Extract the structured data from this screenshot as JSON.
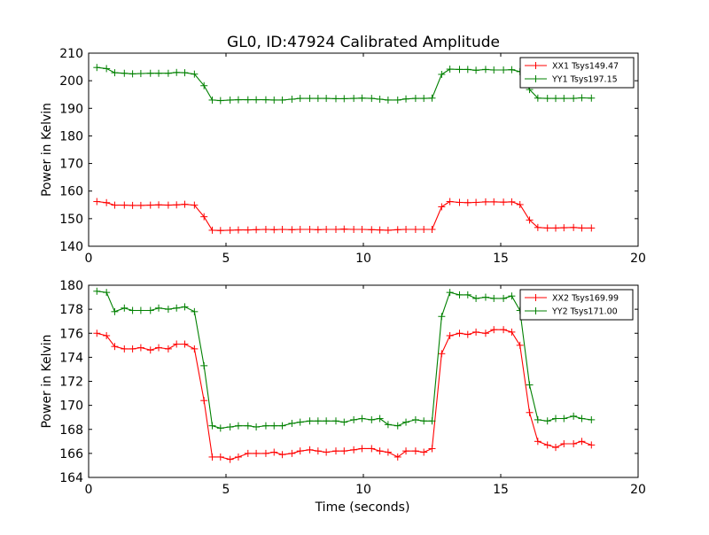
{
  "chart_data": [
    {
      "type": "line",
      "title": "GL0, ID:47924 Calibrated Amplitude",
      "xlabel": "",
      "ylabel": "Power in Kelvin",
      "xlim": [
        0,
        20
      ],
      "ylim": [
        140,
        210
      ],
      "xticks": [
        "0",
        "5",
        "10",
        "15",
        "20"
      ],
      "yticks": [
        "140",
        "150",
        "160",
        "170",
        "180",
        "190",
        "200",
        "210"
      ],
      "legend_position": "top-right",
      "x": [
        0.3,
        0.65,
        0.95,
        1.3,
        1.6,
        1.9,
        2.25,
        2.55,
        2.9,
        3.2,
        3.5,
        3.85,
        4.2,
        4.5,
        4.8,
        5.15,
        5.45,
        5.8,
        6.1,
        6.45,
        6.75,
        7.05,
        7.4,
        7.7,
        8.05,
        8.35,
        8.65,
        9.0,
        9.3,
        9.65,
        9.95,
        10.3,
        10.6,
        10.9,
        11.25,
        11.55,
        11.9,
        12.2,
        12.5,
        12.85,
        13.15,
        13.5,
        13.8,
        14.1,
        14.45,
        14.75,
        15.1,
        15.4,
        15.7,
        16.05,
        16.35,
        16.7,
        17.0,
        17.3,
        17.65,
        17.95,
        18.3
      ],
      "series": [
        {
          "name": "XX1 Tsys149.47",
          "color": "#ff0000",
          "values": [
            156.2,
            155.8,
            154.9,
            154.9,
            154.8,
            154.8,
            154.9,
            155.0,
            154.9,
            155.0,
            155.2,
            154.9,
            150.7,
            145.8,
            145.7,
            145.8,
            145.9,
            145.9,
            146.0,
            146.1,
            146.0,
            146.1,
            146.0,
            146.1,
            146.1,
            146.0,
            146.1,
            146.1,
            146.2,
            146.1,
            146.1,
            146.0,
            145.9,
            145.8,
            146.0,
            146.1,
            146.1,
            146.1,
            146.1,
            154.3,
            156.2,
            155.9,
            155.8,
            155.9,
            156.1,
            156.1,
            156.0,
            156.1,
            155.1,
            149.5,
            146.8,
            146.6,
            146.6,
            146.7,
            146.8,
            146.6,
            146.6
          ]
        },
        {
          "name": "YY1 Tsys197.15",
          "color": "#008000",
          "values": [
            204.8,
            204.4,
            202.9,
            202.7,
            202.5,
            202.6,
            202.7,
            202.7,
            202.7,
            203.0,
            202.9,
            202.4,
            198.2,
            193.0,
            192.8,
            193.0,
            193.1,
            193.1,
            193.1,
            193.1,
            193.0,
            193.0,
            193.3,
            193.6,
            193.6,
            193.6,
            193.6,
            193.5,
            193.5,
            193.6,
            193.7,
            193.6,
            193.3,
            193.0,
            193.0,
            193.4,
            193.6,
            193.6,
            193.7,
            202.3,
            204.2,
            204.1,
            204.1,
            203.8,
            204.1,
            203.9,
            203.9,
            204.0,
            203.3,
            196.8,
            193.7,
            193.6,
            193.6,
            193.6,
            193.6,
            193.8,
            193.7
          ]
        }
      ]
    },
    {
      "type": "line",
      "title": "",
      "xlabel": "Time (seconds)",
      "ylabel": "Power in Kelvin",
      "xlim": [
        0,
        20
      ],
      "ylim": [
        164,
        180
      ],
      "xticks": [
        "0",
        "5",
        "10",
        "15",
        "20"
      ],
      "yticks": [
        "164",
        "166",
        "168",
        "170",
        "172",
        "174",
        "176",
        "178",
        "180"
      ],
      "legend_position": "top-right",
      "x": [
        0.3,
        0.65,
        0.95,
        1.3,
        1.6,
        1.9,
        2.25,
        2.55,
        2.9,
        3.2,
        3.5,
        3.85,
        4.2,
        4.5,
        4.8,
        5.15,
        5.45,
        5.8,
        6.1,
        6.45,
        6.75,
        7.05,
        7.4,
        7.7,
        8.05,
        8.35,
        8.65,
        9.0,
        9.3,
        9.65,
        9.95,
        10.3,
        10.6,
        10.9,
        11.25,
        11.55,
        11.9,
        12.2,
        12.5,
        12.85,
        13.15,
        13.5,
        13.8,
        14.1,
        14.45,
        14.75,
        15.1,
        15.4,
        15.7,
        16.05,
        16.35,
        16.7,
        17.0,
        17.3,
        17.65,
        17.95,
        18.3
      ],
      "series": [
        {
          "name": "XX2 Tsys169.99",
          "color": "#ff0000",
          "values": [
            176.0,
            175.8,
            174.9,
            174.7,
            174.7,
            174.8,
            174.6,
            174.8,
            174.7,
            175.1,
            175.1,
            174.7,
            170.4,
            165.7,
            165.7,
            165.5,
            165.7,
            166.0,
            166.0,
            166.0,
            166.1,
            165.9,
            166.0,
            166.2,
            166.3,
            166.2,
            166.1,
            166.2,
            166.2,
            166.3,
            166.4,
            166.4,
            166.2,
            166.1,
            165.7,
            166.2,
            166.2,
            166.1,
            166.4,
            174.3,
            175.8,
            176.0,
            175.9,
            176.1,
            176.0,
            176.3,
            176.3,
            176.1,
            175.0,
            169.4,
            167.0,
            166.7,
            166.5,
            166.8,
            166.8,
            167.0,
            166.7
          ]
        },
        {
          "name": "YY2 Tsys171.00",
          "color": "#008000",
          "values": [
            179.5,
            179.4,
            177.8,
            178.1,
            177.9,
            177.9,
            177.9,
            178.1,
            178.0,
            178.1,
            178.2,
            177.8,
            173.3,
            168.3,
            168.1,
            168.2,
            168.3,
            168.3,
            168.2,
            168.3,
            168.3,
            168.3,
            168.5,
            168.6,
            168.7,
            168.7,
            168.7,
            168.7,
            168.6,
            168.8,
            168.9,
            168.8,
            168.9,
            168.4,
            168.3,
            168.6,
            168.8,
            168.7,
            168.7,
            177.4,
            179.4,
            179.2,
            179.2,
            178.9,
            179.0,
            178.9,
            178.9,
            179.1,
            177.9,
            171.7,
            168.8,
            168.7,
            168.9,
            168.9,
            169.1,
            168.9,
            168.8
          ]
        }
      ]
    }
  ]
}
